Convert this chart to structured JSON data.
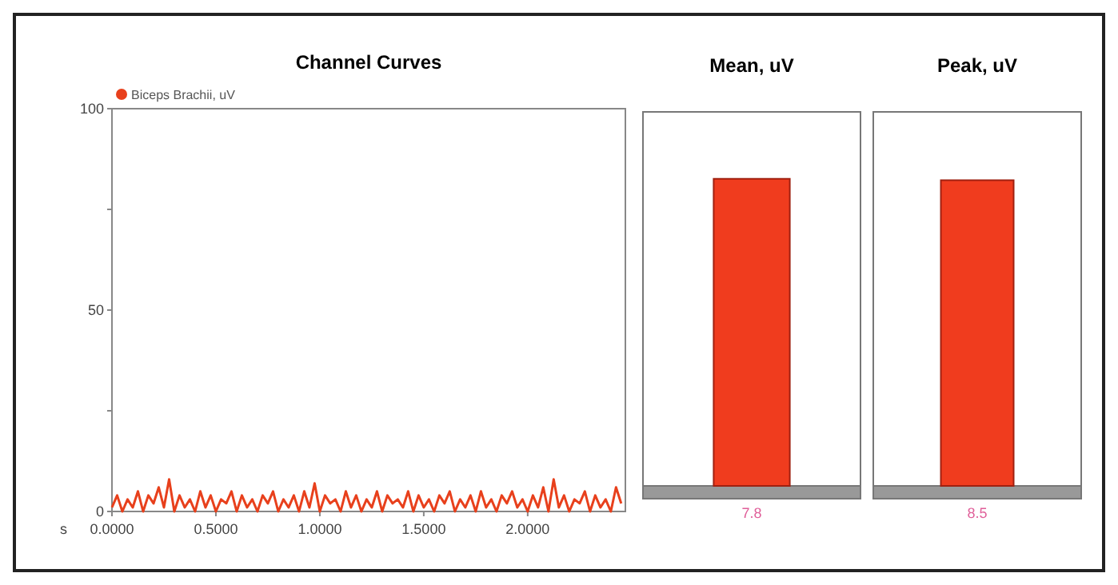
{
  "chart_data": [
    {
      "type": "line",
      "title": "Channel Curves",
      "xlabel": "s",
      "legend": "top left",
      "grid": false,
      "marker": "none",
      "line_style": "solid",
      "xlim": [
        0,
        2.47
      ],
      "xticks": [
        {
          "value": 0,
          "label": "0.0000"
        },
        {
          "value": 0.5,
          "label": "0.5000"
        },
        {
          "value": 1,
          "label": "1.0000"
        },
        {
          "value": 1.5,
          "label": "1.5000"
        },
        {
          "value": 2,
          "label": "2.0000"
        }
      ],
      "ylim": [
        0,
        100
      ],
      "yticks": [
        0,
        {
          "value": 25,
          "label": null
        },
        50,
        {
          "value": 75,
          "label": null
        },
        100
      ],
      "series": [
        {
          "name": "Biceps Brachii, uV",
          "color": "#e8401c",
          "x": [
            0,
            0.025,
            0.05,
            0.075,
            0.1,
            0.125,
            0.15,
            0.175,
            0.2,
            0.225,
            0.25,
            0.275,
            0.3,
            0.325,
            0.35,
            0.375,
            0.4,
            0.425,
            0.45,
            0.475,
            0.5,
            0.525,
            0.55,
            0.575,
            0.6,
            0.625,
            0.65,
            0.675,
            0.7,
            0.725,
            0.75,
            0.775,
            0.8,
            0.825,
            0.85,
            0.875,
            0.9,
            0.925,
            0.95,
            0.975,
            1,
            1.025,
            1.05,
            1.075,
            1.1,
            1.125,
            1.15,
            1.175,
            1.2,
            1.225,
            1.25,
            1.275,
            1.3,
            1.325,
            1.35,
            1.375,
            1.4,
            1.425,
            1.45,
            1.475,
            1.5,
            1.525,
            1.55,
            1.575,
            1.6,
            1.625,
            1.65,
            1.675,
            1.7,
            1.725,
            1.75,
            1.775,
            1.8,
            1.825,
            1.85,
            1.875,
            1.9,
            1.925,
            1.95,
            1.975,
            2,
            2.025,
            2.05,
            2.075,
            2.1,
            2.125,
            2.15,
            2.175,
            2.2,
            2.225,
            2.25,
            2.275,
            2.3,
            2.325,
            2.35,
            2.375,
            2.4,
            2.425,
            2.45
          ],
          "values": [
            1,
            4,
            0,
            3,
            1,
            5,
            0,
            4,
            2,
            6,
            1,
            8,
            0,
            4,
            1,
            3,
            0,
            5,
            1,
            4,
            0,
            3,
            2,
            5,
            0,
            4,
            1,
            3,
            0,
            4,
            2,
            5,
            0,
            3,
            1,
            4,
            0,
            5,
            1,
            7,
            0,
            4,
            2,
            3,
            0,
            5,
            1,
            4,
            0,
            3,
            1,
            5,
            0,
            4,
            2,
            3,
            1,
            5,
            0,
            4,
            1,
            3,
            0,
            4,
            2,
            5,
            0,
            3,
            1,
            4,
            0,
            5,
            1,
            3,
            0,
            4,
            2,
            5,
            1,
            3,
            0,
            4,
            1,
            6,
            0,
            8,
            1,
            4,
            0,
            3,
            2,
            5,
            0,
            4,
            1,
            3,
            0,
            6,
            2
          ]
        }
      ]
    },
    {
      "type": "bar",
      "title": "Mean, uV",
      "categories": [
        null
      ],
      "values": [
        7.8
      ],
      "color": "#f03c1e",
      "ylim": [
        0,
        9.5
      ],
      "data_labels": true
    },
    {
      "type": "bar",
      "title": "Peak, uV",
      "categories": [
        null
      ],
      "values": [
        8.5
      ],
      "color": "#f03c1e",
      "ylim": [
        0,
        10.4
      ],
      "data_labels": true
    }
  ]
}
